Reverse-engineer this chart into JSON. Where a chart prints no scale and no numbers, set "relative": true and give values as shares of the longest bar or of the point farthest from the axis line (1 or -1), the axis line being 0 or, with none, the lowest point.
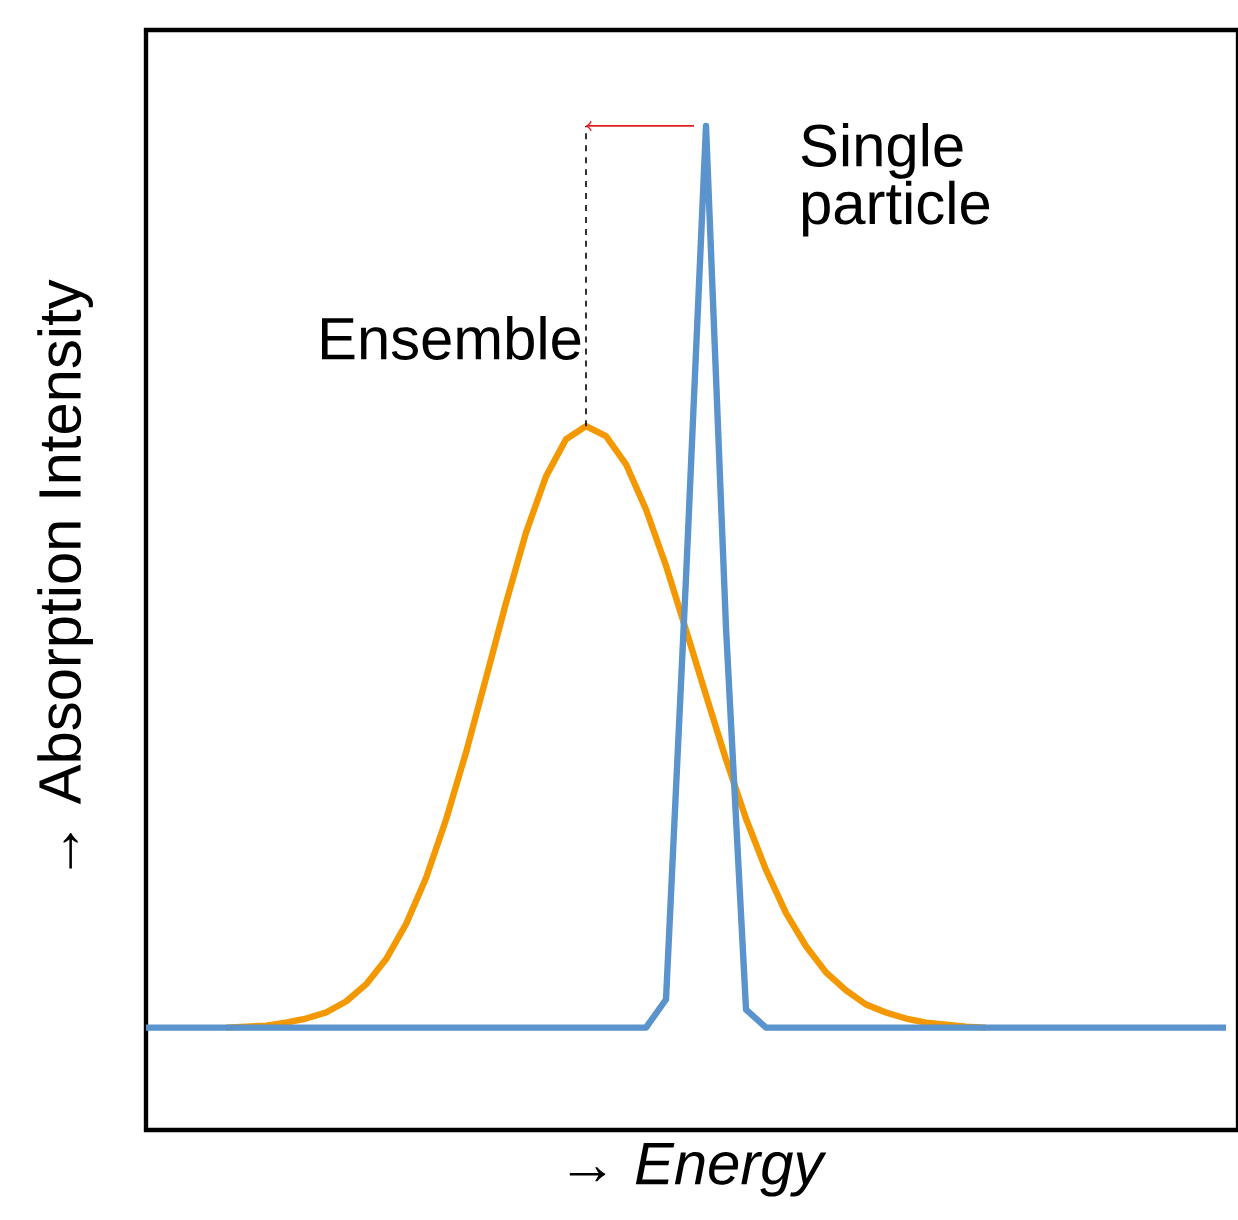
{
  "chart_data": {
    "type": "line",
    "relative": true,
    "xlabel": "→ *Energy*",
    "ylabel": "→ Absorption  Intensity",
    "categories": [
      null,
      null,
      null,
      null,
      null,
      null,
      null,
      null,
      null,
      null,
      null,
      null,
      null,
      null,
      null,
      null,
      null,
      null,
      null,
      null,
      null,
      null,
      null,
      null,
      null,
      null,
      null,
      null,
      null,
      null,
      null,
      null,
      null,
      null,
      null,
      null,
      null,
      null,
      null,
      null,
      null,
      null,
      null,
      null,
      null,
      null,
      null,
      null,
      null,
      null,
      null,
      null,
      null,
      null,
      null
    ],
    "series": [
      {
        "name": "Ensemble",
        "color": "#f39800",
        "values": [
          null,
          null,
          null,
          null,
          0.102,
          0.103,
          0.104,
          0.107,
          0.111,
          0.117,
          0.128,
          0.145,
          0.17,
          0.205,
          0.251,
          0.309,
          0.376,
          0.45,
          0.525,
          0.595,
          0.651,
          0.688,
          0.701,
          0.691,
          0.663,
          0.618,
          0.562,
          0.498,
          0.433,
          0.369,
          0.31,
          0.259,
          0.216,
          0.183,
          0.157,
          0.139,
          0.125,
          0.117,
          0.111,
          0.107,
          0.105,
          0.103,
          0.102,
          null,
          null,
          null,
          null,
          null,
          null,
          null,
          null,
          null,
          null,
          null,
          null
        ]
      },
      {
        "name": "Single particle",
        "color": "#5b93cc",
        "values": [
          0.102,
          0.102,
          0.102,
          0.102,
          0.102,
          0.102,
          0.102,
          0.102,
          0.102,
          0.102,
          0.102,
          0.102,
          0.102,
          0.102,
          0.102,
          0.102,
          0.102,
          0.102,
          0.102,
          0.102,
          0.102,
          0.102,
          0.102,
          0.102,
          0.102,
          0.102,
          0.13,
          0.55,
          1,
          0.5,
          0.12,
          0.102,
          0.102,
          0.102,
          0.102,
          0.102,
          0.102,
          0.102,
          0.102,
          0.102,
          0.102,
          0.102,
          0.102,
          0.102,
          0.102,
          0.102,
          0.102,
          0.102,
          0.102,
          0.102,
          0.102,
          0.102,
          0.102,
          0.102,
          0.102
        ]
      }
    ],
    "marker": "none",
    "line_style": "solid"
  }
}
